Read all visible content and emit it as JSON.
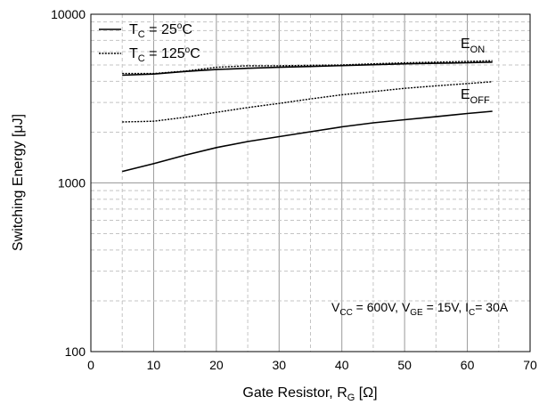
{
  "chart_data": {
    "type": "line",
    "xlabel": "Gate Resistor, R",
    "xlabel_sub": "G",
    "xlabel_unit": "[Ω]",
    "ylabel": "Switching Energy [μJ]",
    "xlim": [
      0,
      70
    ],
    "ylim": [
      100,
      10000
    ],
    "yscale": "log",
    "grid": true,
    "legend_position": "top-left",
    "x_ticks": [
      "0",
      "10",
      "20",
      "30",
      "40",
      "50",
      "60",
      "70"
    ],
    "y_ticks": [
      "100",
      "1000",
      "10000"
    ],
    "legend": [
      {
        "main": "T",
        "sub": "C",
        "rest": " = 25",
        "deg": "o",
        "unit": "C",
        "style": "solid"
      },
      {
        "main": "T",
        "sub": "C",
        "rest": " = 125",
        "deg": "o",
        "unit": "C",
        "style": "dotted"
      }
    ],
    "curve_labels": {
      "eon": {
        "main": "E",
        "sub": "ON"
      },
      "eoff": {
        "main": "E",
        "sub": "OFF"
      }
    },
    "condition": [
      {
        "main": "V",
        "sub": "CC"
      },
      {
        "main": " = 600V, V",
        "sub": "GE"
      },
      {
        "main": " = 15V, I",
        "sub": "C"
      },
      {
        "main": "= 30A",
        "sub": ""
      }
    ],
    "series": [
      {
        "curve": "Eon",
        "tc": "25",
        "style": "solid",
        "x": [
          5,
          10,
          15,
          20,
          25,
          30,
          35,
          40,
          45,
          50,
          55,
          60,
          64
        ],
        "y": [
          4350,
          4420,
          4580,
          4700,
          4780,
          4850,
          4900,
          4960,
          5020,
          5080,
          5120,
          5160,
          5200
        ]
      },
      {
        "curve": "Eon",
        "tc": "125",
        "style": "dotted",
        "x": [
          5,
          10,
          15,
          20,
          25,
          30,
          35,
          40,
          45,
          50,
          55,
          60,
          64
        ],
        "y": [
          4450,
          4450,
          4600,
          4850,
          4950,
          4950,
          4980,
          5000,
          5080,
          5150,
          5200,
          5250,
          5300
        ]
      },
      {
        "curve": "Eoff",
        "tc": "25",
        "style": "solid",
        "x": [
          5,
          10,
          15,
          20,
          25,
          30,
          35,
          40,
          45,
          50,
          55,
          60,
          64
        ],
        "y": [
          1170,
          1300,
          1460,
          1620,
          1760,
          1880,
          2010,
          2150,
          2270,
          2370,
          2470,
          2580,
          2660
        ]
      },
      {
        "curve": "Eoff",
        "tc": "125",
        "style": "dotted",
        "x": [
          5,
          10,
          15,
          20,
          25,
          30,
          35,
          40,
          45,
          50,
          55,
          60,
          64
        ],
        "y": [
          2300,
          2320,
          2450,
          2620,
          2800,
          2960,
          3150,
          3330,
          3480,
          3640,
          3760,
          3880,
          3980
        ]
      }
    ]
  }
}
